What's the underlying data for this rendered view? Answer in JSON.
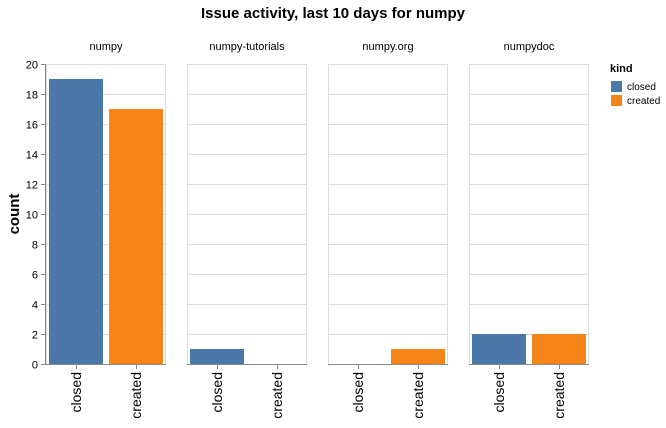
{
  "chart_data": {
    "type": "bar",
    "title": "Issue activity, last 10 days for numpy",
    "ylabel": "count",
    "xlabel": "",
    "ylim": [
      0,
      20
    ],
    "yticks": [
      0,
      2,
      4,
      6,
      8,
      10,
      12,
      14,
      16,
      18,
      20
    ],
    "grid": true,
    "categories": [
      "closed",
      "created"
    ],
    "facets": [
      {
        "name": "numpy",
        "values": [
          19,
          17
        ]
      },
      {
        "name": "numpy-tutorials",
        "values": [
          1,
          0
        ]
      },
      {
        "name": "numpy.org",
        "values": [
          0,
          1
        ]
      },
      {
        "name": "numpydoc",
        "values": [
          2,
          2
        ]
      }
    ],
    "legend": {
      "title": "kind",
      "position": "right",
      "items": [
        {
          "label": "closed",
          "color": "#4c78a8"
        },
        {
          "label": "created",
          "color": "#f58518"
        }
      ]
    }
  }
}
